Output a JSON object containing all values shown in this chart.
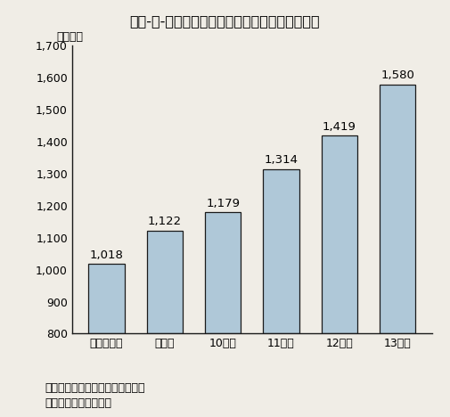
{
  "title": "第３-３-２図　科学研究費補助金の予算額の推移",
  "ylabel": "（億円）",
  "categories": [
    "平成８年度",
    "９年度",
    "10年度",
    "11年度",
    "12年度",
    "13年度"
  ],
  "values": [
    1018,
    1122,
    1179,
    1314,
    1419,
    1580
  ],
  "labels": [
    "1,018",
    "1,122",
    "1,179",
    "1,314",
    "1,419",
    "1,580"
  ],
  "ylim": [
    800,
    1700
  ],
  "yticks": [
    800,
    900,
    1000,
    1100,
    1200,
    1300,
    1400,
    1500,
    1600,
    1700
  ],
  "ytick_labels": [
    "800",
    "900",
    "1,000",
    "1,100",
    "1,200",
    "1,300",
    "1,400",
    "1,500",
    "1,600",
    "1,700"
  ],
  "bar_color": "#afc8d8",
  "bar_edge_color": "#1a1a1a",
  "background_color": "#f0ede6",
  "note1": "注）各年度とも補正予算を含む。",
  "note2": "資料：文部科学省調べ",
  "title_fontsize": 11.5,
  "label_fontsize": 9.5,
  "tick_fontsize": 9,
  "note_fontsize": 9,
  "ylabel_fontsize": 9
}
